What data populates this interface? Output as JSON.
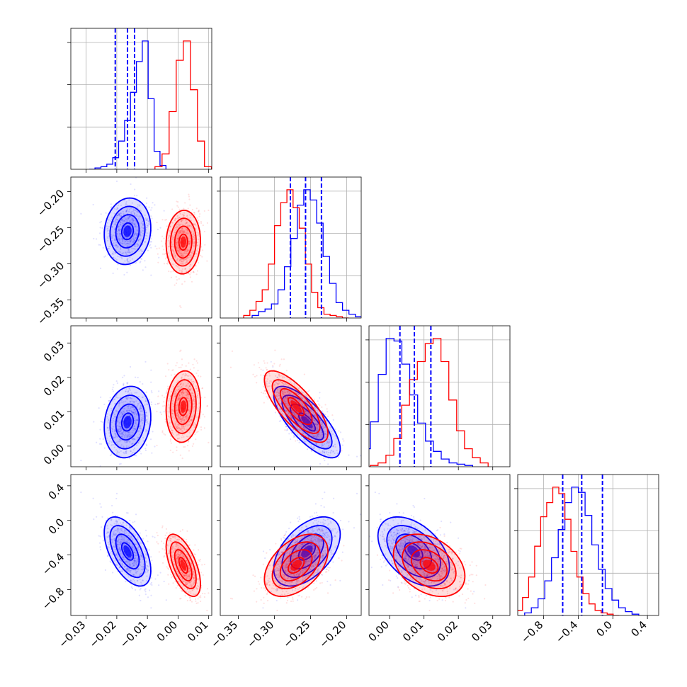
{
  "chart_data": {
    "type": "corner",
    "title": "",
    "colors": {
      "series_a": "#0000ff",
      "series_b": "#ff0000",
      "grid": "#b0b0b0"
    },
    "parameters": [
      {
        "label": "",
        "range": [
          -0.035,
          0.011
        ],
        "ticks": [
          -0.03,
          -0.02,
          -0.01,
          0.0,
          0.01
        ],
        "tick_labels": [
          "−0.03",
          "−0.02",
          "−0.01",
          "0.00",
          "0.01"
        ]
      },
      {
        "label": "",
        "range": [
          -0.375,
          -0.18
        ],
        "ticks": [
          -0.35,
          -0.3,
          -0.25,
          -0.2
        ],
        "tick_labels": [
          "−0.35",
          "−0.30",
          "−0.25",
          "−0.20"
        ]
      },
      {
        "label": "",
        "range": [
          -0.006,
          0.035
        ],
        "ticks": [
          0.0,
          0.01,
          0.02,
          0.03
        ],
        "tick_labels": [
          "0.00",
          "0.01",
          "0.02",
          "0.03"
        ]
      },
      {
        "label": "",
        "range": [
          -1.1,
          0.53
        ],
        "ticks": [
          -0.8,
          -0.4,
          0.0,
          0.4
        ],
        "tick_labels": [
          "−0.8",
          "−0.4",
          "0.0",
          "0.4"
        ]
      }
    ],
    "series": [
      {
        "name": "",
        "color": "#0000ff",
        "mean": [
          -0.0165,
          -0.255,
          0.007,
          -0.36
        ],
        "std": [
          0.0038,
          0.023,
          0.0052,
          0.2
        ],
        "corr": [
          [
            1,
            0.1,
            0.15,
            -0.55
          ],
          [
            0.1,
            1,
            -0.75,
            0.5
          ],
          [
            0.15,
            -0.75,
            1,
            -0.45
          ],
          [
            -0.55,
            0.5,
            -0.45,
            1
          ]
        ],
        "quantiles": [
          [
            -0.0205,
            -0.0165,
            -0.0142
          ],
          [
            -0.278,
            -0.257,
            -0.235
          ],
          [
            0.003,
            0.0072,
            0.012
          ],
          [
            -0.58,
            -0.36,
            -0.12
          ]
        ],
        "hist": [
          [
            0,
            1,
            2,
            4,
            9,
            22,
            38,
            60,
            84,
            100,
            55,
            14,
            3
          ],
          [
            2,
            5,
            7,
            11,
            22,
            40,
            62,
            88,
            100,
            92,
            74,
            48,
            27,
            12,
            6,
            3,
            1
          ],
          [
            3,
            14,
            35,
            72,
            100,
            98,
            80,
            56,
            34,
            20,
            12,
            6,
            3,
            2,
            1
          ],
          [
            2,
            6,
            13,
            27,
            45,
            67,
            88,
            100,
            96,
            78,
            55,
            36,
            21,
            12,
            6,
            3,
            1
          ]
        ]
      },
      {
        "name": "",
        "color": "#ff0000",
        "mean": [
          0.0017,
          -0.27,
          0.0115,
          -0.52
        ],
        "std": [
          0.0028,
          0.022,
          0.0052,
          0.18
        ],
        "corr": [
          [
            1,
            0.05,
            0.1,
            -0.6
          ],
          [
            0.05,
            1,
            -0.75,
            0.45
          ],
          [
            0.1,
            -0.75,
            1,
            -0.35
          ],
          [
            -0.6,
            0.45,
            -0.35,
            1
          ]
        ],
        "quantiles": [],
        "hist": [
          [
            2,
            12,
            45,
            85,
            100,
            62,
            22,
            2
          ],
          [
            2,
            6,
            13,
            22,
            42,
            72,
            90,
            100,
            86,
            70,
            42,
            20,
            8,
            3,
            2,
            1,
            0
          ],
          [
            1,
            3,
            9,
            22,
            48,
            68,
            82,
            96,
            100,
            82,
            52,
            28,
            14,
            7,
            3
          ],
          [
            4,
            14,
            30,
            54,
            77,
            88,
            100,
            95,
            75,
            50,
            30,
            17,
            9,
            4,
            2,
            1,
            0
          ]
        ]
      }
    ]
  }
}
